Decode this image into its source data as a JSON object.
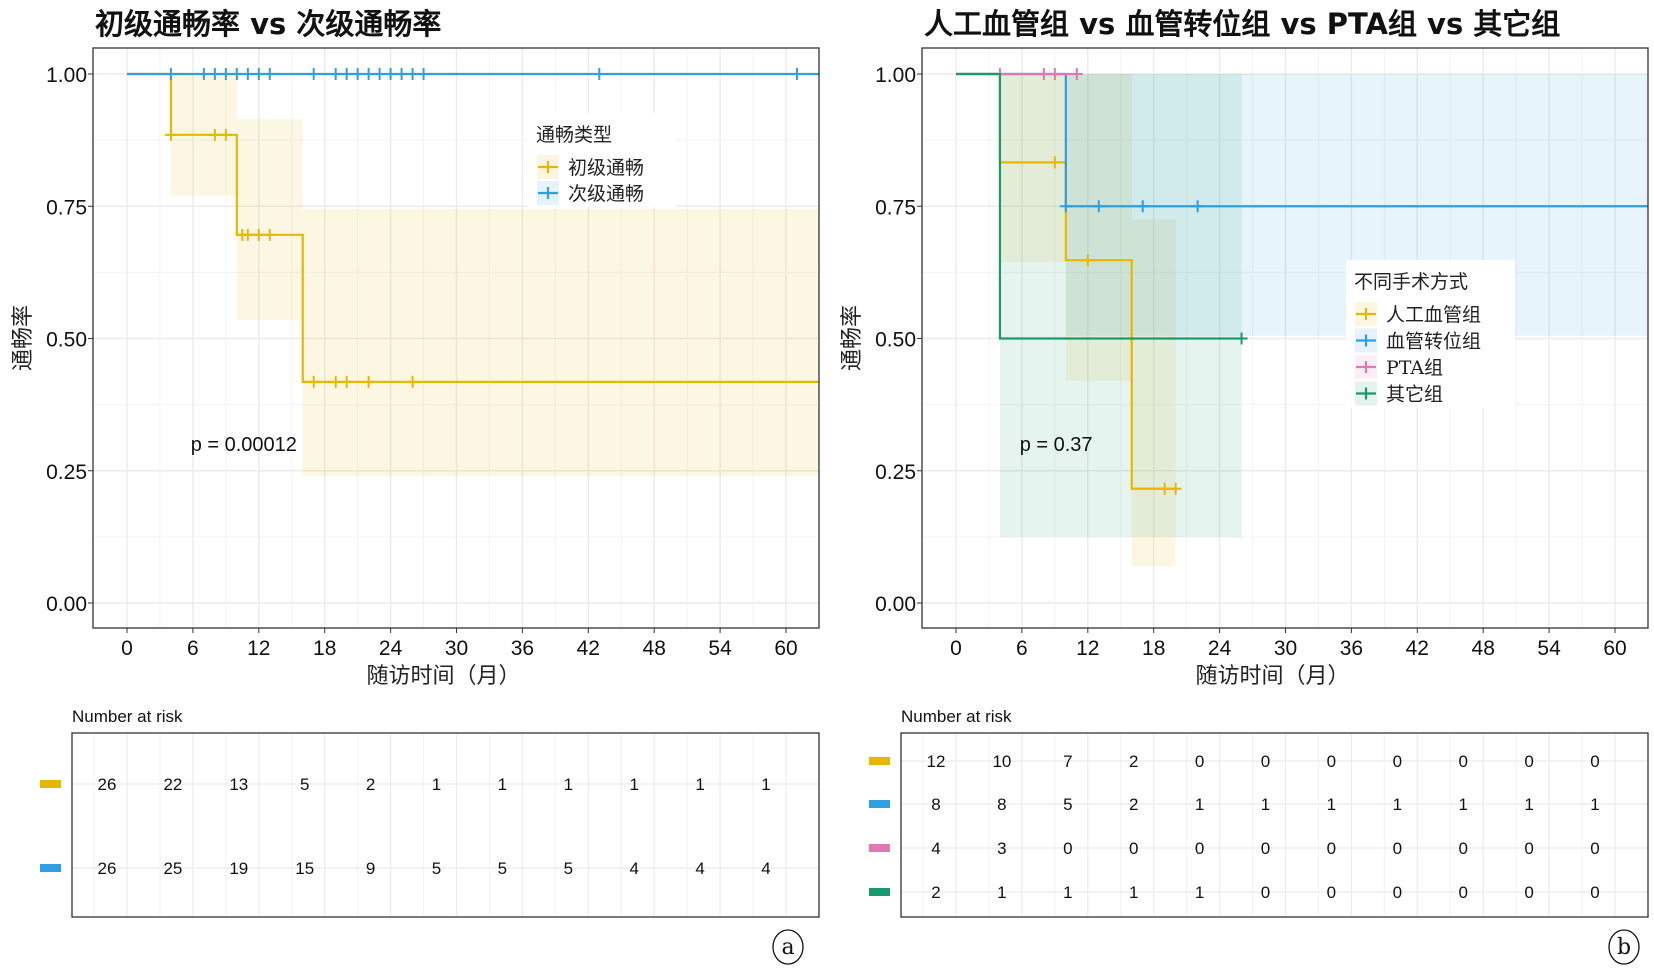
{
  "chart_data": [
    {
      "type": "line",
      "subtype": "kaplan-meier",
      "title": "初级通畅率 vs 次级通畅率",
      "xlabel": "随访时间（月）",
      "ylabel": "通畅率",
      "xlim": [
        0,
        63
      ],
      "ylim": [
        0,
        1
      ],
      "xticks": [
        "0",
        "6",
        "12",
        "18",
        "24",
        "30",
        "36",
        "42",
        "48",
        "54",
        "60"
      ],
      "yticks": [
        "0.00",
        "0.25",
        "0.50",
        "0.75",
        "1.00"
      ],
      "grid": true,
      "pvalue": "p = 0.00012",
      "legend": {
        "title": "通畅类型",
        "placement": "top-right"
      },
      "series": [
        {
          "name": "初级通畅",
          "color": "#E7B800",
          "steps": [
            [
              0,
              1.0
            ],
            [
              4,
              0.885
            ],
            [
              10,
              0.696
            ],
            [
              16,
              0.418
            ]
          ],
          "end": 63,
          "censor": [
            4,
            8,
            9,
            10.5,
            11,
            12,
            13,
            17,
            19,
            20,
            22,
            26
          ],
          "ci": [
            [
              4,
              10,
              0.77,
              1.0
            ],
            [
              10,
              16,
              0.535,
              0.915
            ],
            [
              16,
              63,
              0.24,
              0.745
            ]
          ]
        },
        {
          "name": "次级通畅",
          "color": "#2E9FDF",
          "steps": [
            [
              0,
              1.0
            ]
          ],
          "end": 63,
          "censor": [
            4,
            7,
            8,
            9,
            10,
            11,
            12,
            13,
            17,
            19,
            20,
            21,
            22,
            23,
            24,
            25,
            26,
            27,
            43,
            61
          ],
          "ci": []
        }
      ],
      "risk_table": {
        "title": "Number at risk",
        "times": [
          0,
          6,
          12,
          18,
          24,
          30,
          36,
          42,
          48,
          54,
          60
        ],
        "rows": [
          [
            "26",
            "22",
            "13",
            "5",
            "2",
            "1",
            "1",
            "1",
            "1",
            "1",
            "1"
          ],
          [
            "26",
            "25",
            "19",
            "15",
            "9",
            "5",
            "5",
            "5",
            "4",
            "4",
            "4"
          ]
        ]
      },
      "panel_label": "a"
    },
    {
      "type": "line",
      "subtype": "kaplan-meier",
      "title": "人工血管组 vs 血管转位组 vs PTA组 vs 其它组",
      "xlabel": "随访时间（月）",
      "ylabel": "通畅率",
      "xlim": [
        0,
        63
      ],
      "ylim": [
        0,
        1
      ],
      "xticks": [
        "0",
        "6",
        "12",
        "18",
        "24",
        "30",
        "36",
        "42",
        "48",
        "54",
        "60"
      ],
      "yticks": [
        "0.00",
        "0.25",
        "0.50",
        "0.75",
        "1.00"
      ],
      "grid": true,
      "pvalue": "p = 0.37",
      "legend": {
        "title": "不同手术方式",
        "placement": "right"
      },
      "series": [
        {
          "name": "人工血管组",
          "color": "#E7B800",
          "steps": [
            [
              0,
              1.0
            ],
            [
              4,
              0.833
            ],
            [
              10,
              0.648
            ],
            [
              16,
              0.216
            ]
          ],
          "end": 20,
          "censor": [
            9,
            12,
            19,
            20
          ],
          "ci": [
            [
              4,
              10,
              0.645,
              1.0
            ],
            [
              10,
              16,
              0.42,
              1.0
            ],
            [
              16,
              20,
              0.07,
              0.725
            ]
          ]
        },
        {
          "name": "血管转位组",
          "color": "#2E9FDF",
          "steps": [
            [
              0,
              1.0
            ],
            [
              10,
              0.75
            ]
          ],
          "end": 63,
          "censor": [
            10,
            13,
            17,
            22
          ],
          "ci": [
            [
              10,
              63,
              0.505,
              1.0
            ]
          ]
        },
        {
          "name": "PTA组",
          "color": "#E377B4",
          "steps": [
            [
              4,
              1.0
            ]
          ],
          "end": 11,
          "censor": [
            4,
            8,
            9,
            11
          ],
          "ci": []
        },
        {
          "name": "其它组",
          "color": "#1A9A6C",
          "steps": [
            [
              0,
              1.0
            ],
            [
              4,
              0.5
            ]
          ],
          "end": 26,
          "censor": [
            26
          ],
          "ci": [
            [
              4,
              26,
              0.125,
              1.0
            ]
          ]
        }
      ],
      "risk_table": {
        "title": "Number at risk",
        "times": [
          0,
          6,
          12,
          18,
          24,
          30,
          36,
          42,
          48,
          54,
          60
        ],
        "rows": [
          [
            "12",
            "10",
            "7",
            "2",
            "0",
            "0",
            "0",
            "0",
            "0",
            "0",
            "0"
          ],
          [
            "8",
            "8",
            "5",
            "2",
            "1",
            "1",
            "1",
            "1",
            "1",
            "1",
            "1"
          ],
          [
            "4",
            "3",
            "0",
            "0",
            "0",
            "0",
            "0",
            "0",
            "0",
            "0",
            "0"
          ],
          [
            "2",
            "1",
            "1",
            "1",
            "1",
            "0",
            "0",
            "0",
            "0",
            "0",
            "0"
          ]
        ]
      },
      "panel_label": "b"
    }
  ]
}
